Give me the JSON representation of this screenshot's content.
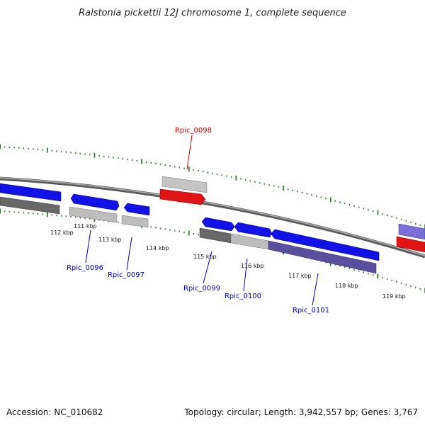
{
  "title": "Ralstonia pickettii 12J chromosome 1, complete sequence",
  "footer": {
    "accession": "Accession: NC_010682",
    "summary": "Topology: circular; Length: 3,942,557 bp; Genes: 3,767"
  },
  "colors": {
    "forward_gene": "#1010e0",
    "highlighted_gene": "#e01010",
    "reverse_gene_dark": "#666666",
    "reverse_gene_light": "#bbbbbb",
    "reverse_gene_purple": "#5a4e9e",
    "backbone": "#808080",
    "tick": "#2e7d2e",
    "label_blue": "#0000c0",
    "label_red": "#cc0000"
  },
  "scale_labels": [
    "111 kbp",
    "112 kbp",
    "113 kbp",
    "114 kbp",
    "115 kbp",
    "116 kbp",
    "117 kbp",
    "118 kbp",
    "119 kbp"
  ],
  "gene_labels": [
    {
      "id": "Rpic_0098",
      "color": "red"
    },
    {
      "id": "Rpic_0096",
      "color": "blue"
    },
    {
      "id": "Rpic_0097",
      "color": "blue"
    },
    {
      "id": "Rpic_0099",
      "color": "blue"
    },
    {
      "id": "Rpic_0100",
      "color": "blue"
    },
    {
      "id": "Rpic_0101",
      "color": "blue"
    }
  ]
}
